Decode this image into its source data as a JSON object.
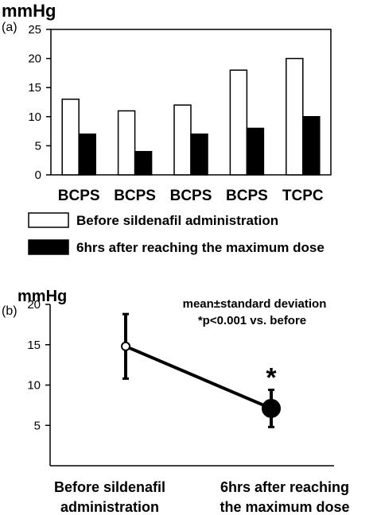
{
  "chart_data": [
    {
      "panel": "(a)",
      "type": "bar",
      "ylabel": "mmHg",
      "ylim": [
        0,
        25
      ],
      "yticks": [
        0,
        5,
        10,
        15,
        20,
        25
      ],
      "categories": [
        "BCPS",
        "BCPS",
        "BCPS",
        "BCPS",
        "TCPC"
      ],
      "series": [
        {
          "name": "Before sildenafil administration",
          "color": "#ffffff",
          "values": [
            13,
            11,
            12,
            18,
            20
          ]
        },
        {
          "name": "6hrs after reaching the maximum dose",
          "color": "#000000",
          "values": [
            7,
            4,
            7,
            8,
            10
          ]
        }
      ],
      "legend_position": "bottom",
      "grid": false
    },
    {
      "panel": "(b)",
      "type": "line",
      "ylabel": "mmHg",
      "ylim": [
        0,
        20
      ],
      "yticks": [
        5,
        10,
        15,
        20
      ],
      "categories": [
        "Before sildenafil administration",
        "6hrs after reaching the maximum dose"
      ],
      "category_lines": [
        [
          "Before sildenafil",
          "administration"
        ],
        [
          "6hrs after reaching",
          "the maximum dose"
        ]
      ],
      "points": [
        {
          "x": "Before sildenafil administration",
          "mean": 14.8,
          "sd": 4.0,
          "marker": "open-circle"
        },
        {
          "x": "6hrs after reaching the maximum dose",
          "mean": 7.1,
          "sd": 2.3,
          "marker": "filled-circle"
        }
      ],
      "significance_marker": "*",
      "annotations": [
        "mean±standard deviation",
        "*p<0.001 vs. before"
      ],
      "grid": false
    }
  ]
}
